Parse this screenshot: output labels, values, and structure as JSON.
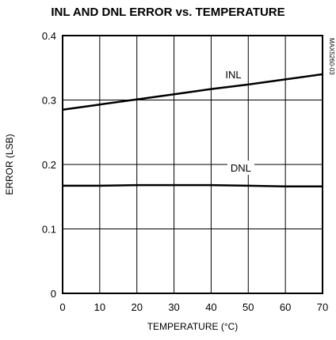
{
  "chart_data": {
    "type": "line",
    "title": "INL AND DNL ERROR vs. TEMPERATURE",
    "xlabel": "TEMPERATURE (°C)",
    "ylabel": "ERROR (LSB)",
    "xlim": [
      0,
      70
    ],
    "ylim": [
      0,
      0.4
    ],
    "x_ticks": [
      "0",
      "10",
      "20",
      "30",
      "40",
      "50",
      "60",
      "70"
    ],
    "y_ticks": [
      "0",
      "0.1",
      "0.2",
      "0.3",
      "0.4"
    ],
    "grid": true,
    "legend": "labels-on-lines",
    "series": [
      {
        "name": "INL",
        "x": [
          0,
          10,
          20,
          30,
          40,
          50,
          60,
          70
        ],
        "y": [
          0.285,
          0.293,
          0.301,
          0.309,
          0.317,
          0.324,
          0.332,
          0.34
        ]
      },
      {
        "name": "DNL",
        "x": [
          0,
          10,
          20,
          30,
          40,
          50,
          60,
          70
        ],
        "y": [
          0.167,
          0.167,
          0.168,
          0.168,
          0.168,
          0.167,
          0.166,
          0.166
        ]
      }
    ],
    "figure_code": "MAX5260-03"
  }
}
